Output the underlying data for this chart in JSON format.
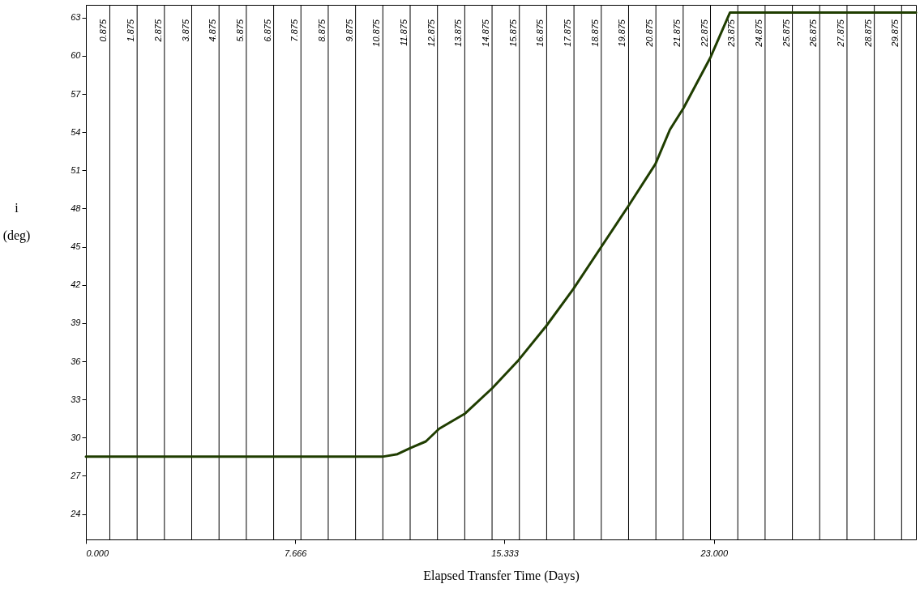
{
  "chart_data": {
    "type": "line",
    "xlabel": "Elapsed Transfer Time (Days)",
    "ylabel": "i (deg)",
    "x": [
      0,
      10.86,
      11.41,
      11.9,
      12.45,
      12.94,
      13.89,
      14.89,
      15.85,
      16.87,
      17.86,
      18.91,
      19.87,
      20.86,
      21.39,
      21.89,
      22.88,
      23.59,
      30.4
    ],
    "series": [
      {
        "color": "#1f3d00",
        "values": [
          28.5,
          28.5,
          28.7,
          29.2,
          29.7,
          30.7,
          31.9,
          33.9,
          36.1,
          38.8,
          41.7,
          45.1,
          48.2,
          51.5,
          54.2,
          55.9,
          59.9,
          63.4,
          63.4
        ]
      }
    ],
    "xlim": [
      0,
      30.4
    ],
    "xticks": [
      {
        "value": 0,
        "label": "0.000"
      },
      {
        "value": 7.666,
        "label": "7.666"
      },
      {
        "value": 15.333,
        "label": "15.333"
      },
      {
        "value": 23,
        "label": "23.000"
      }
    ],
    "ylim": [
      22,
      64
    ],
    "yticks": [
      24,
      27,
      30,
      33,
      36,
      39,
      42,
      45,
      48,
      51,
      54,
      57,
      60,
      63
    ],
    "grid": false,
    "marker": "none",
    "line_style": "solid",
    "ref_lines": [
      {
        "axis": "x",
        "value": 0.875,
        "label": "0.875"
      },
      {
        "axis": "x",
        "value": 1.875,
        "label": "1.875"
      },
      {
        "axis": "x",
        "value": 2.875,
        "label": "2.875"
      },
      {
        "axis": "x",
        "value": 3.875,
        "label": "3.875"
      },
      {
        "axis": "x",
        "value": 4.875,
        "label": "4.875"
      },
      {
        "axis": "x",
        "value": 5.875,
        "label": "5.875"
      },
      {
        "axis": "x",
        "value": 6.875,
        "label": "6.875"
      },
      {
        "axis": "x",
        "value": 7.875,
        "label": "7.875"
      },
      {
        "axis": "x",
        "value": 8.875,
        "label": "8.875"
      },
      {
        "axis": "x",
        "value": 9.875,
        "label": "9.875"
      },
      {
        "axis": "x",
        "value": 10.875,
        "label": "10.875"
      },
      {
        "axis": "x",
        "value": 11.875,
        "label": "11.875"
      },
      {
        "axis": "x",
        "value": 12.875,
        "label": "12.875"
      },
      {
        "axis": "x",
        "value": 13.875,
        "label": "13.875"
      },
      {
        "axis": "x",
        "value": 14.875,
        "label": "14.875"
      },
      {
        "axis": "x",
        "value": 15.875,
        "label": "15.875"
      },
      {
        "axis": "x",
        "value": 16.875,
        "label": "16.875"
      },
      {
        "axis": "x",
        "value": 17.875,
        "label": "17.875"
      },
      {
        "axis": "x",
        "value": 18.875,
        "label": "18.875"
      },
      {
        "axis": "x",
        "value": 19.875,
        "label": "19.875"
      },
      {
        "axis": "x",
        "value": 20.875,
        "label": "20.875"
      },
      {
        "axis": "x",
        "value": 21.875,
        "label": "21.875"
      },
      {
        "axis": "x",
        "value": 22.875,
        "label": "22.875"
      },
      {
        "axis": "x",
        "value": 23.875,
        "label": "23.875"
      },
      {
        "axis": "x",
        "value": 24.875,
        "label": "24.875"
      },
      {
        "axis": "x",
        "value": 25.875,
        "label": "25.875"
      },
      {
        "axis": "x",
        "value": 26.875,
        "label": "26.875"
      },
      {
        "axis": "x",
        "value": 27.875,
        "label": "27.875"
      },
      {
        "axis": "x",
        "value": 28.875,
        "label": "28.875"
      },
      {
        "axis": "x",
        "value": 29.875,
        "label": "29.875"
      }
    ]
  }
}
